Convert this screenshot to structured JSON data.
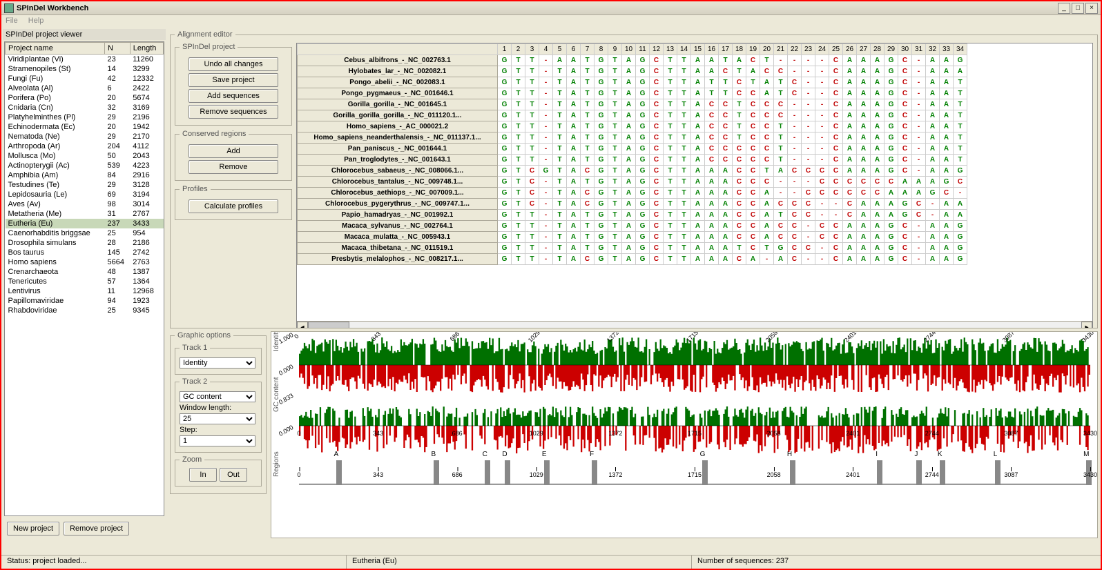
{
  "window": {
    "title": "SPInDel Workbench"
  },
  "menu": {
    "file": "File",
    "help": "Help"
  },
  "projectViewer": {
    "title": "SPInDel project viewer",
    "columns": [
      "Project name",
      "N",
      "Length"
    ],
    "rows": [
      {
        "name": "Viridiplantae (Vi)",
        "n": 23,
        "len": 11260
      },
      {
        "name": "Stramenopiles (St)",
        "n": 14,
        "len": 3299
      },
      {
        "name": "Fungi (Fu)",
        "n": 42,
        "len": 12332
      },
      {
        "name": "Alveolata (Al)",
        "n": 6,
        "len": 2422
      },
      {
        "name": "Porifera (Po)",
        "n": 20,
        "len": 5674
      },
      {
        "name": "Cnidaria (Cn)",
        "n": 32,
        "len": 3169
      },
      {
        "name": "Platyhelminthes (Pl)",
        "n": 29,
        "len": 2196
      },
      {
        "name": "Echinodermata (Ec)",
        "n": 20,
        "len": 1942
      },
      {
        "name": "Nematoda (Ne)",
        "n": 29,
        "len": 2170
      },
      {
        "name": "Arthropoda (Ar)",
        "n": 204,
        "len": 4112
      },
      {
        "name": "Mollusca (Mo)",
        "n": 50,
        "len": 2043
      },
      {
        "name": "Actinopterygii (Ac)",
        "n": 539,
        "len": 4223
      },
      {
        "name": "Amphibia (Am)",
        "n": 84,
        "len": 2916
      },
      {
        "name": "Testudines (Te)",
        "n": 29,
        "len": 3128
      },
      {
        "name": "Lepidosauria (Le)",
        "n": 69,
        "len": 3194
      },
      {
        "name": "Aves (Av)",
        "n": 98,
        "len": 3014
      },
      {
        "name": "Metatheria (Me)",
        "n": 31,
        "len": 2767
      },
      {
        "name": "Eutheria (Eu)",
        "n": 237,
        "len": 3433,
        "selected": true
      },
      {
        "name": "Caenorhabditis briggsae",
        "n": 25,
        "len": 954
      },
      {
        "name": "Drosophila simulans",
        "n": 28,
        "len": 2186
      },
      {
        "name": "Bos taurus",
        "n": 145,
        "len": 2742
      },
      {
        "name": "Homo sapiens",
        "n": 5664,
        "len": 2763
      },
      {
        "name": "Crenarchaeota",
        "n": 48,
        "len": 1387
      },
      {
        "name": "Tenericutes",
        "n": 57,
        "len": 1364
      },
      {
        "name": "Lentivirus",
        "n": 11,
        "len": 12968
      },
      {
        "name": "Papillomaviridae",
        "n": 94,
        "len": 1923
      },
      {
        "name": "Rhabdoviridae",
        "n": 25,
        "len": 9345
      }
    ],
    "newProject": "New project",
    "removeProject": "Remove project"
  },
  "alignEditor": {
    "title": "Alignment editor",
    "spindelProject": {
      "title": "SPInDel project",
      "undo": "Undo all changes",
      "save": "Save project",
      "add": "Add sequences",
      "remove": "Remove sequences"
    },
    "conserved": {
      "title": "Conserved regions",
      "add": "Add",
      "remove": "Remove"
    },
    "profiles": {
      "title": "Profiles",
      "calc": "Calculate profiles"
    },
    "columns": 34,
    "sequences": [
      {
        "name": "Cebus_albifrons_-_NC_002763.1",
        "seq": "GTT-AATGTAGCTTAATACT----CAAAGC-AAGG"
      },
      {
        "name": "Hylobates_lar_-_NC_002082.1",
        "seq": "GTT-TATGTAGCTTAACTACC---CAAAGC-AAAA"
      },
      {
        "name": "Pongo_abelii_-_NC_002083.1",
        "seq": "GTT-TATGTAGCTTATTCTATC--CAAAGC-AATA"
      },
      {
        "name": "Pongo_pygmaeus_-_NC_001646.1",
        "seq": "GTT-TATGTAGCTTATTCCATC--CAAAGC-AATA"
      },
      {
        "name": "Gorilla_gorilla_-_NC_001645.1",
        "seq": "GTT-TATGTAGCTTACCTCCC---CAAAGC-AATA"
      },
      {
        "name": "Gorilla_gorilla_gorilla_-_NC_011120.1...",
        "seq": "GTT-TATGTAGCTTACCTCCC---CAAAGC-AATA"
      },
      {
        "name": "Homo_sapiens_-_AC_000021.2",
        "seq": "GTT-TATGTAGCTTACCTCCT---CAAAGC-AATA"
      },
      {
        "name": "Homo_sapiens_neanderthalensis_-_NC_011137.1...",
        "seq": "GTT-TATGTAGCTTACCTCCT---CAAAGC-AATA"
      },
      {
        "name": "Pan_paniscus_-_NC_001644.1",
        "seq": "GTT-TATGTAGCTTACCCCCT---CAAAGC-AATA"
      },
      {
        "name": "Pan_troglodytes_-_NC_001643.1",
        "seq": "GTT-TATGTAGCTTACCCCCT---CAAAGC-AATA"
      },
      {
        "name": "Chlorocebus_sabaeus_-_NC_008066.1...",
        "seq": "GTCGTACGTAGCTTAAACCTACCCCAAAGC-AAGA"
      },
      {
        "name": "Chlorocebus_tantalus_-_NC_009748.1...",
        "seq": "GTC-TATGTAGCTTAAACCC---CCCCCCAAAGC-AAGA"
      },
      {
        "name": "Chlorocebus_aethiops_-_NC_007009.1...",
        "seq": "GTC-TACGTAGCTTAAACCA--CCCCCCAAAGC-AAGA"
      },
      {
        "name": "Chlorocebus_pygerythrus_-_NC_009747.1...",
        "seq": "GTC-TACGTAGCTTAAACCACCC--CAAAGC-AAGA"
      },
      {
        "name": "Papio_hamadryas_-_NC_001992.1",
        "seq": "GTT-TATGTAGCTTAAACCATCC--CAAAGC-AAGA"
      },
      {
        "name": "Macaca_sylvanus_-_NC_002764.1",
        "seq": "GTT-TATGTAGCTTAAACCACC-CCAAAGC-AAGA"
      },
      {
        "name": "Macaca_mulatta_-_NC_005943.1",
        "seq": "GTT-TATGTAGCTTAAACCACC-CCAAAGC-AAGA"
      },
      {
        "name": "Macaca_thibetana_-_NC_011519.1",
        "seq": "GTT-TATGTAGCTTAAATCTGCC-CAAAGC-AAGA"
      },
      {
        "name": "Presbytis_melalophos_-_NC_008217.1...",
        "seq": "GTT-TACGTAGCTTAAACA-AC--CAAAGC-AAGA"
      }
    ]
  },
  "graphicOptions": {
    "title": "Graphic options",
    "track1": {
      "title": "Track 1",
      "value": "Identity"
    },
    "track2": {
      "title": "Track 2",
      "value": "GC content"
    },
    "windowLength": {
      "label": "Window length:",
      "value": "25"
    },
    "step": {
      "label": "Step:",
      "value": "1"
    },
    "zoom": {
      "title": "Zoom",
      "in": "In",
      "out": "Out"
    }
  },
  "tracks": {
    "identity": {
      "label": "Identity",
      "yTop": "1.000",
      "yBot": "0.000"
    },
    "gc": {
      "label": "GC content",
      "yTop": "0.833",
      "yBot": "0.000"
    },
    "ticks": [
      0,
      343,
      686,
      1029,
      1372,
      1715,
      2058,
      2401,
      2744,
      3087,
      3430
    ],
    "max": 3430,
    "regions": {
      "label": "Regions",
      "letters": [
        "A",
        "B",
        "C",
        "D",
        "E",
        "F",
        "G",
        "H",
        "I",
        "J",
        "K",
        "L",
        "M"
      ],
      "positions": [
        0.047,
        0.17,
        0.235,
        0.26,
        0.31,
        0.37,
        0.51,
        0.62,
        0.73,
        0.78,
        0.81,
        0.88,
        0.995
      ]
    }
  },
  "statusbar": {
    "status": "Status: project loaded...",
    "selection": "Eutheria (Eu)",
    "count": "Number of sequences: 237"
  }
}
